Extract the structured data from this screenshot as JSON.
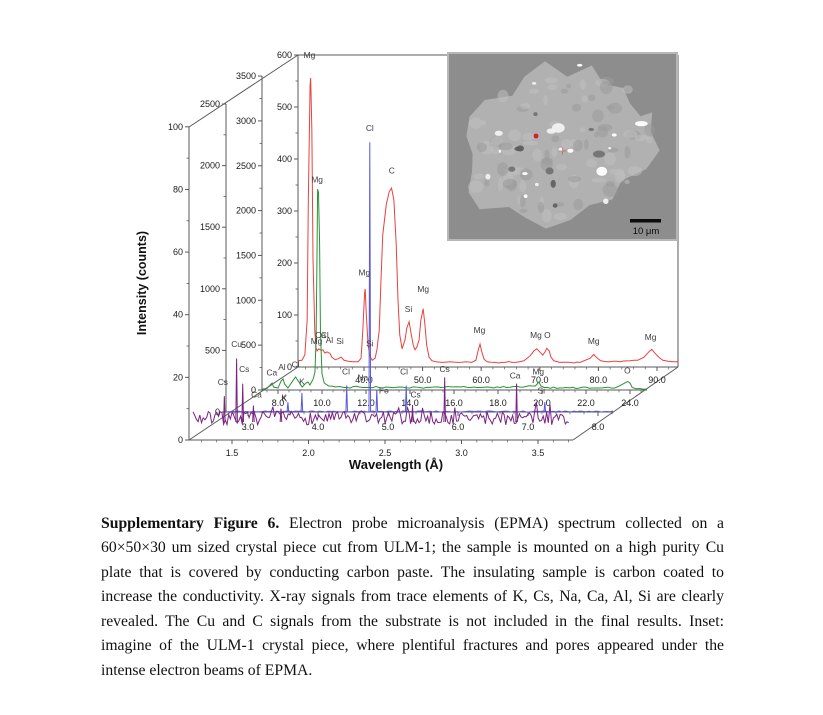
{
  "figure": {
    "axis_titles": {
      "y": "Intensity (counts)",
      "x": "Wavelength  (Å)"
    },
    "inset": {
      "scale_label": "10 μm",
      "marker_color": "#d42020"
    },
    "caption": {
      "lead": "Supplementary Figure 6.",
      "body": " Electron probe microanalysis (EPMA) spectrum collected on a 60×50×30 um sized crystal piece cut from ULM-1; the sample is mounted on a high purity Cu plate that is covered by conducting carbon paste. The insulating sample is carbon coated to increase the conductivity. X-ray signals from trace elements of K, Cs, Na, Ca, Al, Si are clearly revealed. The Cu and C signals from the substrate is not included in the final results. Inset: imagine of the ULM-1 crystal piece, where plentiful fractures and pores appeared under the intense electron beams of EPMA."
    }
  },
  "chart_data": [
    {
      "id": "purple",
      "name": "front-spectrum-cu-substrate",
      "type": "line",
      "color": "#7a2382",
      "x_axis": {
        "title": "Wavelength  (Å)",
        "ticks": [
          1.5,
          2.0,
          2.5,
          3.0,
          3.5
        ],
        "range": [
          1.22,
          3.73
        ]
      },
      "y_axis": {
        "title": "Intensity (counts)",
        "ticks": [
          0,
          20,
          40,
          60,
          80,
          100
        ],
        "range": [
          0,
          100
        ]
      },
      "baseline": 7,
      "noise_amp": 5,
      "peaks": [
        {
          "el": "Cs",
          "x": 1.45,
          "c": 14
        },
        {
          "el": "Cu",
          "x": 1.53,
          "c": 26
        },
        {
          "el": "Cs",
          "x": 1.57,
          "c": 18
        },
        {
          "el": "Ca",
          "x": 1.64,
          "c": 11
        },
        {
          "el": "K",
          "x": 1.82,
          "c": 10
        },
        {
          "el": "Cs",
          "x": 2.68,
          "c": 11
        },
        {
          "el": "Cs",
          "x": 2.89,
          "c": 20
        },
        {
          "el": "Ca",
          "x": 3.36,
          "c": 18
        }
      ],
      "labels": [
        {
          "el": "Cs",
          "x": 1.44,
          "c": 17
        },
        {
          "el": "Cu",
          "x": 1.53,
          "c": 29
        },
        {
          "el": "Cs",
          "x": 1.58,
          "c": 21
        },
        {
          "el": "Ca",
          "x": 1.66,
          "c": 13
        },
        {
          "el": "K",
          "x": 1.84,
          "c": 12
        },
        {
          "el": "Cs",
          "x": 2.7,
          "c": 13
        },
        {
          "el": "Cs",
          "x": 2.89,
          "c": 21
        },
        {
          "el": "Ca",
          "x": 3.35,
          "c": 19
        }
      ]
    },
    {
      "id": "blue",
      "name": "second-spectrum",
      "type": "line",
      "color": "#5b5bd6",
      "x_axis": {
        "ticks": [
          3.0,
          4.0,
          5.0,
          6.0,
          7.0,
          8.0
        ],
        "range": [
          2.69,
          8.23
        ]
      },
      "y_axis": {
        "ticks": [
          0,
          500,
          1000,
          1500,
          2000,
          2500
        ],
        "range": [
          0,
          2500
        ]
      },
      "baseline": 4,
      "peaks": [
        {
          "el": "K",
          "x": 3.57,
          "c": 80
        },
        {
          "el": "K",
          "x": 3.77,
          "c": 155
        },
        {
          "el": "Cl",
          "x": 4.41,
          "c": 215
        },
        {
          "el": "Cl",
          "x": 4.74,
          "c": 2190
        },
        {
          "el": "Fe",
          "x": 4.84,
          "c": 180
        },
        {
          "el": "Cl",
          "x": 5.26,
          "c": 215
        },
        {
          "el": "Si",
          "x": 7.24,
          "c": 80
        }
      ],
      "labels": [
        {
          "el": "K",
          "x": 3.52,
          "c": 70
        },
        {
          "el": "K",
          "x": 3.77,
          "c": 205
        },
        {
          "el": "Cl",
          "x": 4.4,
          "c": 290
        },
        {
          "el": "Na",
          "x": 4.64,
          "c": 240
        },
        {
          "el": "Cl",
          "x": 4.74,
          "c": 2265
        },
        {
          "el": "Fe",
          "x": 4.94,
          "c": 135
        },
        {
          "el": "Cl",
          "x": 5.23,
          "c": 290
        },
        {
          "el": "Si",
          "x": 7.19,
          "c": 135
        }
      ]
    },
    {
      "id": "green",
      "name": "third-spectrum",
      "type": "line",
      "color": "#2a9235",
      "x_axis": {
        "ticks": [
          8.0,
          10.0,
          12.0,
          14.0,
          16.0,
          18.0,
          20.0,
          22.0,
          24.0
        ],
        "range": [
          7.27,
          24.77
        ]
      },
      "y_axis": {
        "ticks": [
          0,
          500,
          1000,
          1500,
          2000,
          2500,
          3000,
          3500
        ],
        "range": [
          0,
          3500
        ]
      },
      "points": [
        [
          7.3,
          11
        ],
        [
          7.5,
          17
        ],
        [
          7.64,
          56
        ],
        [
          7.73,
          78
        ],
        [
          7.8,
          33
        ],
        [
          8.0,
          22
        ],
        [
          8.14,
          100
        ],
        [
          8.23,
          123
        ],
        [
          8.3,
          67
        ],
        [
          8.45,
          22
        ],
        [
          8.7,
          112
        ],
        [
          8.8,
          145
        ],
        [
          8.95,
          89
        ],
        [
          9.1,
          33
        ],
        [
          9.27,
          78
        ],
        [
          9.36,
          89
        ],
        [
          9.45,
          56
        ],
        [
          9.6,
          123
        ],
        [
          9.68,
          200
        ],
        [
          9.73,
          560
        ],
        [
          9.77,
          1430
        ],
        [
          9.8,
          2240
        ],
        [
          9.84,
          2200
        ],
        [
          9.89,
          1650
        ],
        [
          9.93,
          650
        ],
        [
          10.0,
          180
        ],
        [
          10.1,
          78
        ],
        [
          10.3,
          45
        ],
        [
          10.6,
          33
        ],
        [
          11.0,
          28
        ],
        [
          11.7,
          33
        ],
        [
          12.6,
          28
        ],
        [
          13.5,
          33
        ],
        [
          14.45,
          28
        ],
        [
          15.4,
          28
        ],
        [
          16.3,
          33
        ],
        [
          17.2,
          28
        ],
        [
          18.1,
          28
        ],
        [
          19.0,
          33
        ],
        [
          19.7,
          45
        ],
        [
          19.86,
          89
        ],
        [
          19.95,
          45
        ],
        [
          20.1,
          28
        ],
        [
          20.8,
          22
        ],
        [
          21.7,
          22
        ],
        [
          22.6,
          22
        ],
        [
          23.3,
          22
        ],
        [
          23.6,
          56
        ],
        [
          23.8,
          83
        ],
        [
          23.9,
          94
        ],
        [
          24.0,
          78
        ],
        [
          24.1,
          28
        ],
        [
          24.45,
          17
        ],
        [
          24.77,
          11
        ]
      ],
      "labels": [
        {
          "el": "Ca",
          "x": 7.72,
          "c": 140
        },
        {
          "el": "Al",
          "x": 8.18,
          "c": 200
        },
        {
          "el": "Cl",
          "x": 8.8,
          "c": 230
        },
        {
          "el": "Mg",
          "x": 9.78,
          "c": 2290
        },
        {
          "el": "Mg",
          "x": 19.83,
          "c": 150
        },
        {
          "el": "O",
          "x": 23.88,
          "c": 160
        }
      ]
    },
    {
      "id": "red",
      "name": "rear-spectrum-epma",
      "type": "line",
      "color": "#e8413f",
      "x_axis": {
        "ticks": [
          40.0,
          50.0,
          60.0,
          70.0,
          80.0,
          90.0
        ],
        "range": [
          28.7,
          93.6
        ]
      },
      "y_axis": {
        "ticks": [
          0,
          100,
          200,
          300,
          400,
          500,
          600
        ],
        "range": [
          0,
          600
        ]
      },
      "points": [
        [
          28.7,
          12
        ],
        [
          29.4,
          13
        ],
        [
          29.9,
          23
        ],
        [
          30.3,
          90
        ],
        [
          30.5,
          321
        ],
        [
          30.8,
          542
        ],
        [
          30.9,
          556
        ],
        [
          31.1,
          456
        ],
        [
          31.3,
          206
        ],
        [
          31.6,
          71
        ],
        [
          31.8,
          37
        ],
        [
          32.0,
          31
        ],
        [
          32.3,
          35
        ],
        [
          32.7,
          32
        ],
        [
          33.0,
          33
        ],
        [
          33.3,
          27
        ],
        [
          33.7,
          29
        ],
        [
          34.2,
          26
        ],
        [
          34.5,
          19
        ],
        [
          35.1,
          14
        ],
        [
          35.6,
          16
        ],
        [
          36.1,
          19
        ],
        [
          36.6,
          13
        ],
        [
          37.3,
          11
        ],
        [
          38.1,
          10
        ],
        [
          39.0,
          10
        ],
        [
          39.5,
          17
        ],
        [
          39.8,
          71
        ],
        [
          40.1,
          142
        ],
        [
          40.2,
          150
        ],
        [
          40.4,
          100
        ],
        [
          40.7,
          42
        ],
        [
          41.0,
          21
        ],
        [
          41.4,
          13
        ],
        [
          41.9,
          17
        ],
        [
          42.2,
          33
        ],
        [
          42.6,
          71
        ],
        [
          42.9,
          167
        ],
        [
          43.2,
          254
        ],
        [
          43.8,
          312
        ],
        [
          44.3,
          337
        ],
        [
          44.7,
          344
        ],
        [
          45.1,
          321
        ],
        [
          45.5,
          235
        ],
        [
          45.8,
          129
        ],
        [
          46.1,
          62
        ],
        [
          46.5,
          35
        ],
        [
          47.0,
          52
        ],
        [
          47.3,
          75
        ],
        [
          47.7,
          87
        ],
        [
          48.0,
          67
        ],
        [
          48.4,
          42
        ],
        [
          48.7,
          33
        ],
        [
          49.0,
          38
        ],
        [
          49.4,
          52
        ],
        [
          49.7,
          90
        ],
        [
          50.1,
          112
        ],
        [
          50.4,
          81
        ],
        [
          50.7,
          42
        ],
        [
          51.1,
          19
        ],
        [
          51.6,
          12
        ],
        [
          52.3,
          10
        ],
        [
          53.3,
          9
        ],
        [
          54.7,
          10
        ],
        [
          56.0,
          9
        ],
        [
          57.4,
          10
        ],
        [
          58.4,
          9
        ],
        [
          59.1,
          13
        ],
        [
          59.5,
          33
        ],
        [
          59.8,
          44
        ],
        [
          60.1,
          29
        ],
        [
          60.5,
          15
        ],
        [
          61.0,
          10
        ],
        [
          62.4,
          9
        ],
        [
          64.1,
          9
        ],
        [
          65.8,
          9
        ],
        [
          67.3,
          12
        ],
        [
          68.3,
          21
        ],
        [
          69.0,
          31
        ],
        [
          69.5,
          35
        ],
        [
          70.0,
          29
        ],
        [
          70.5,
          23
        ],
        [
          70.9,
          29
        ],
        [
          71.2,
          36
        ],
        [
          71.6,
          31
        ],
        [
          71.9,
          19
        ],
        [
          72.4,
          12
        ],
        [
          73.4,
          9
        ],
        [
          75.2,
          9
        ],
        [
          76.9,
          9
        ],
        [
          78.6,
          17
        ],
        [
          79.2,
          24
        ],
        [
          79.8,
          17
        ],
        [
          80.4,
          12
        ],
        [
          82.0,
          10
        ],
        [
          83.7,
          10
        ],
        [
          85.4,
          12
        ],
        [
          86.7,
          13
        ],
        [
          87.8,
          19
        ],
        [
          88.6,
          29
        ],
        [
          89.1,
          34
        ],
        [
          89.6,
          27
        ],
        [
          90.3,
          19
        ],
        [
          91.0,
          13
        ],
        [
          91.9,
          11
        ],
        [
          92.9,
          10
        ],
        [
          93.6,
          10
        ]
      ],
      "labels": [
        {
          "el": "Mg",
          "x": 30.7,
          "c": 590
        },
        {
          "el": "Mg",
          "x": 31.9,
          "c": 40
        },
        {
          "el": "Ca",
          "x": 32.6,
          "c": 52
        },
        {
          "el": "Cl",
          "x": 33.3,
          "c": 52
        },
        {
          "el": "Al",
          "x": 34.1,
          "c": 42
        },
        {
          "el": "Si",
          "x": 35.9,
          "c": 40
        },
        {
          "el": "Mg",
          "x": 40.05,
          "c": 172
        },
        {
          "el": "Si",
          "x": 41.0,
          "c": 36
        },
        {
          "el": "C",
          "x": 44.75,
          "c": 368
        },
        {
          "el": "Si",
          "x": 47.6,
          "c": 102
        },
        {
          "el": "Mg",
          "x": 50.1,
          "c": 140
        },
        {
          "el": "Mg",
          "x": 59.7,
          "c": 62
        },
        {
          "el": "Mg",
          "x": 69.35,
          "c": 52
        },
        {
          "el": "O",
          "x": 71.3,
          "c": 52
        },
        {
          "el": "Mg",
          "x": 79.2,
          "c": 40
        },
        {
          "el": "Mg",
          "x": 88.9,
          "c": 48
        }
      ]
    }
  ]
}
